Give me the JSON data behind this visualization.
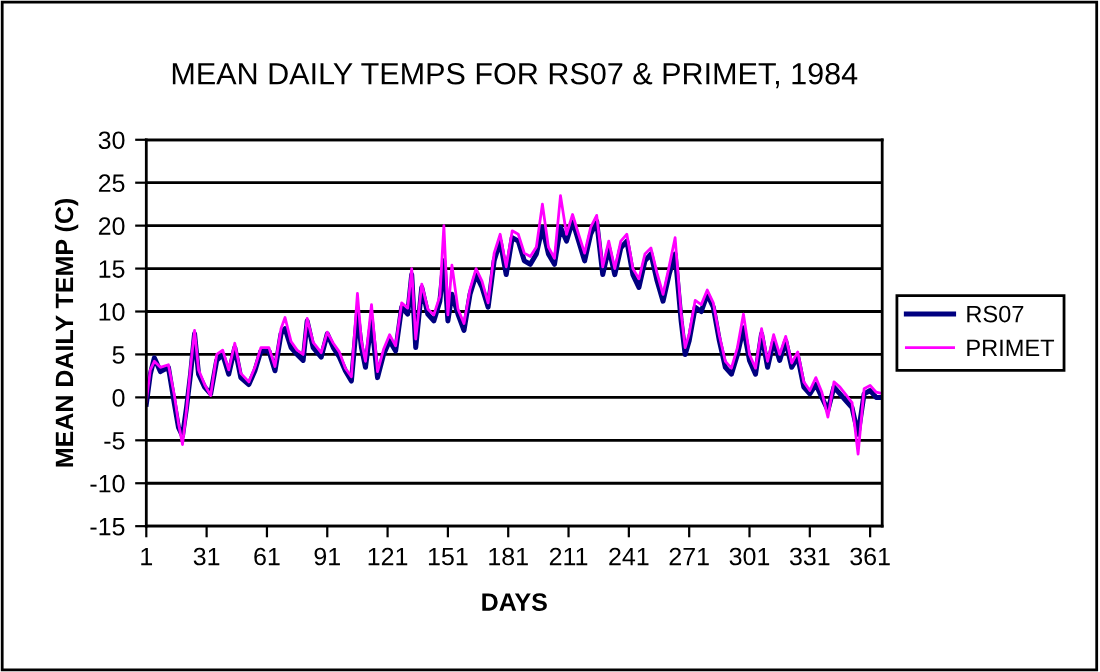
{
  "chart_data": {
    "type": "line",
    "title": "MEAN DAILY TEMPS FOR RS07 & PRIMET, 1984",
    "xlabel": "DAYS",
    "ylabel": "MEAN DAILY TEMP (C)",
    "x": [
      1,
      3,
      5,
      8,
      12,
      15,
      17,
      19,
      21,
      23,
      25,
      27,
      30,
      33,
      36,
      39,
      42,
      45,
      48,
      52,
      55,
      58,
      62,
      65,
      68,
      70,
      73,
      76,
      79,
      81,
      84,
      88,
      91,
      94,
      97,
      100,
      103,
      106,
      108,
      110,
      113,
      116,
      119,
      122,
      125,
      128,
      131,
      133,
      135,
      138,
      141,
      144,
      147,
      149,
      151,
      153,
      156,
      159,
      162,
      165,
      168,
      171,
      174,
      177,
      180,
      183,
      186,
      189,
      192,
      195,
      198,
      201,
      204,
      207,
      210,
      213,
      216,
      219,
      222,
      225,
      228,
      231,
      234,
      237,
      240,
      243,
      246,
      249,
      252,
      255,
      258,
      261,
      264,
      267,
      269,
      271,
      274,
      277,
      280,
      283,
      286,
      289,
      292,
      295,
      298,
      301,
      304,
      307,
      310,
      313,
      316,
      319,
      322,
      325,
      328,
      331,
      334,
      337,
      340,
      343,
      346,
      349,
      352,
      355,
      358,
      361,
      364,
      366
    ],
    "series": [
      {
        "name": "RS07",
        "color": "#000080",
        "values": [
          -0.8,
          2.7,
          4.6,
          3,
          3.5,
          -0.8,
          -3.5,
          -4.5,
          -1.2,
          2.7,
          7.4,
          2.7,
          1.2,
          0.4,
          4.3,
          5,
          2.7,
          5.8,
          2.3,
          1.5,
          3.1,
          5.4,
          5.4,
          3.1,
          7.4,
          8,
          5.8,
          5,
          4.3,
          8.9,
          5.8,
          4.7,
          7.4,
          5.8,
          4.7,
          3.1,
          1.9,
          9.7,
          5.8,
          3.5,
          8.9,
          2.3,
          5,
          6.6,
          5.4,
          10.5,
          9.7,
          14.3,
          5.8,
          12.8,
          9.7,
          8.9,
          11.2,
          15.9,
          8.9,
          12,
          9.7,
          7.8,
          12,
          14.3,
          12.8,
          10.5,
          15.9,
          18.2,
          14.3,
          18.6,
          18.2,
          15.9,
          15.5,
          16.7,
          19.8,
          16.7,
          15.5,
          19.8,
          18.2,
          20.5,
          18.2,
          15.9,
          19,
          20.5,
          14.3,
          17.4,
          14.3,
          17.4,
          18.2,
          14.3,
          12.8,
          15.9,
          16.7,
          13.6,
          11.2,
          14.3,
          16.7,
          8.9,
          5,
          6.6,
          10.5,
          10,
          12,
          10.5,
          6.6,
          3.5,
          2.7,
          5,
          8.1,
          4.3,
          2.7,
          7.4,
          3.5,
          6.6,
          4.3,
          6.6,
          3.5,
          4.7,
          1.2,
          0.4,
          1.5,
          0,
          -1.5,
          1.2,
          0.4,
          -0.4,
          -1.2,
          -4.3,
          0.4,
          0.8,
          0,
          0
        ]
      },
      {
        "name": "PRIMET",
        "color": "#ff00ff",
        "values": [
          -0.5,
          3.2,
          4.2,
          3.5,
          3.8,
          0.2,
          -3,
          -5.5,
          -1.5,
          3.5,
          7.8,
          3.2,
          1.5,
          0.2,
          5,
          5.5,
          3.2,
          6.3,
          2.8,
          1.8,
          3.5,
          5.8,
          5.8,
          3.6,
          8,
          9.3,
          6.5,
          5.5,
          5,
          9.2,
          6.4,
          5.2,
          7.6,
          6.3,
          5.3,
          3.4,
          2.4,
          12.1,
          6.5,
          4.2,
          10.8,
          3,
          5.6,
          7.3,
          6,
          11,
          10.4,
          15,
          6.8,
          13.2,
          10.3,
          9.6,
          11.8,
          20,
          9.6,
          15.4,
          10.3,
          8.6,
          12.6,
          15,
          13.5,
          11,
          16.8,
          19,
          15.2,
          19.4,
          19,
          16.8,
          16.4,
          17.5,
          22.5,
          17.5,
          16.2,
          23.5,
          19,
          21.3,
          19,
          16.8,
          19.8,
          21.2,
          15.2,
          18.2,
          15,
          18.2,
          19,
          15,
          13.8,
          16.7,
          17.4,
          14.5,
          12,
          15.2,
          18.6,
          9.8,
          5.8,
          7.4,
          11.3,
          10.8,
          12.5,
          11,
          7.2,
          4.2,
          3.4,
          5.8,
          9.7,
          5,
          3.4,
          8,
          4.2,
          7.3,
          5,
          7.1,
          4,
          5.3,
          1.8,
          0.8,
          2.3,
          0.6,
          -2.3,
          1.8,
          1.2,
          0.3,
          -0.6,
          -6.6,
          1,
          1.4,
          0.6,
          0.5
        ]
      }
    ],
    "xlim": [
      1,
      367
    ],
    "xticks": [
      1,
      31,
      61,
      91,
      121,
      151,
      181,
      211,
      241,
      271,
      301,
      331,
      361
    ],
    "ylim": [
      -15,
      30
    ],
    "yticks": [
      -15,
      -10,
      -5,
      0,
      5,
      10,
      15,
      20,
      25,
      30
    ],
    "grid": "y",
    "legend": "right",
    "marker": "none",
    "line_style": "solid"
  }
}
